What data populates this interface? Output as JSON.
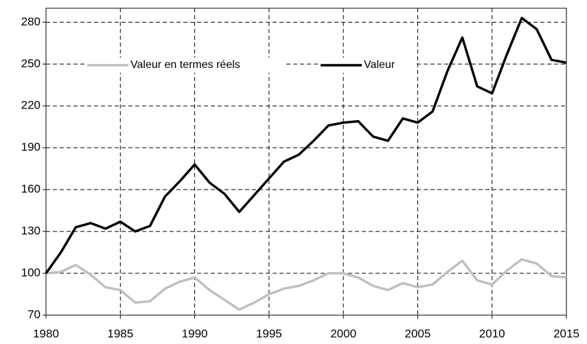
{
  "chart_data": {
    "type": "line",
    "x": [
      1980,
      1981,
      1982,
      1983,
      1984,
      1985,
      1986,
      1987,
      1988,
      1989,
      1990,
      1991,
      1992,
      1993,
      1994,
      1995,
      1996,
      1997,
      1998,
      1999,
      2000,
      2001,
      2002,
      2003,
      2004,
      2005,
      2006,
      2007,
      2008,
      2009,
      2010,
      2011,
      2012,
      2013,
      2014,
      2015
    ],
    "series": [
      {
        "name": "Valeur en termes réels",
        "color": "#bfbfbf",
        "values": [
          100,
          101,
          106,
          99,
          90,
          88,
          79,
          80,
          89,
          94,
          97,
          88,
          81,
          74,
          79,
          85,
          89,
          91,
          95,
          100,
          100,
          97,
          91,
          88,
          93,
          90,
          92,
          101,
          109,
          95,
          92,
          102,
          110,
          107,
          98,
          97
        ]
      },
      {
        "name": "Valeur",
        "color": "#000000",
        "values": [
          100,
          115,
          133,
          136,
          132,
          137,
          130,
          134,
          155,
          166,
          178,
          165,
          157,
          144,
          156,
          168,
          180,
          185,
          195,
          206,
          208,
          209,
          198,
          195,
          211,
          208,
          216,
          245,
          269,
          234,
          229,
          257,
          283,
          275,
          253,
          251
        ]
      }
    ],
    "xlim": [
      1980,
      2015
    ],
    "xticks": [
      1980,
      1985,
      1990,
      1995,
      2000,
      2005,
      2010,
      2015
    ],
    "ylim": [
      70,
      290
    ],
    "yticks": [
      70,
      100,
      130,
      160,
      190,
      220,
      250,
      280
    ],
    "grid": true,
    "legend": "top-left"
  }
}
